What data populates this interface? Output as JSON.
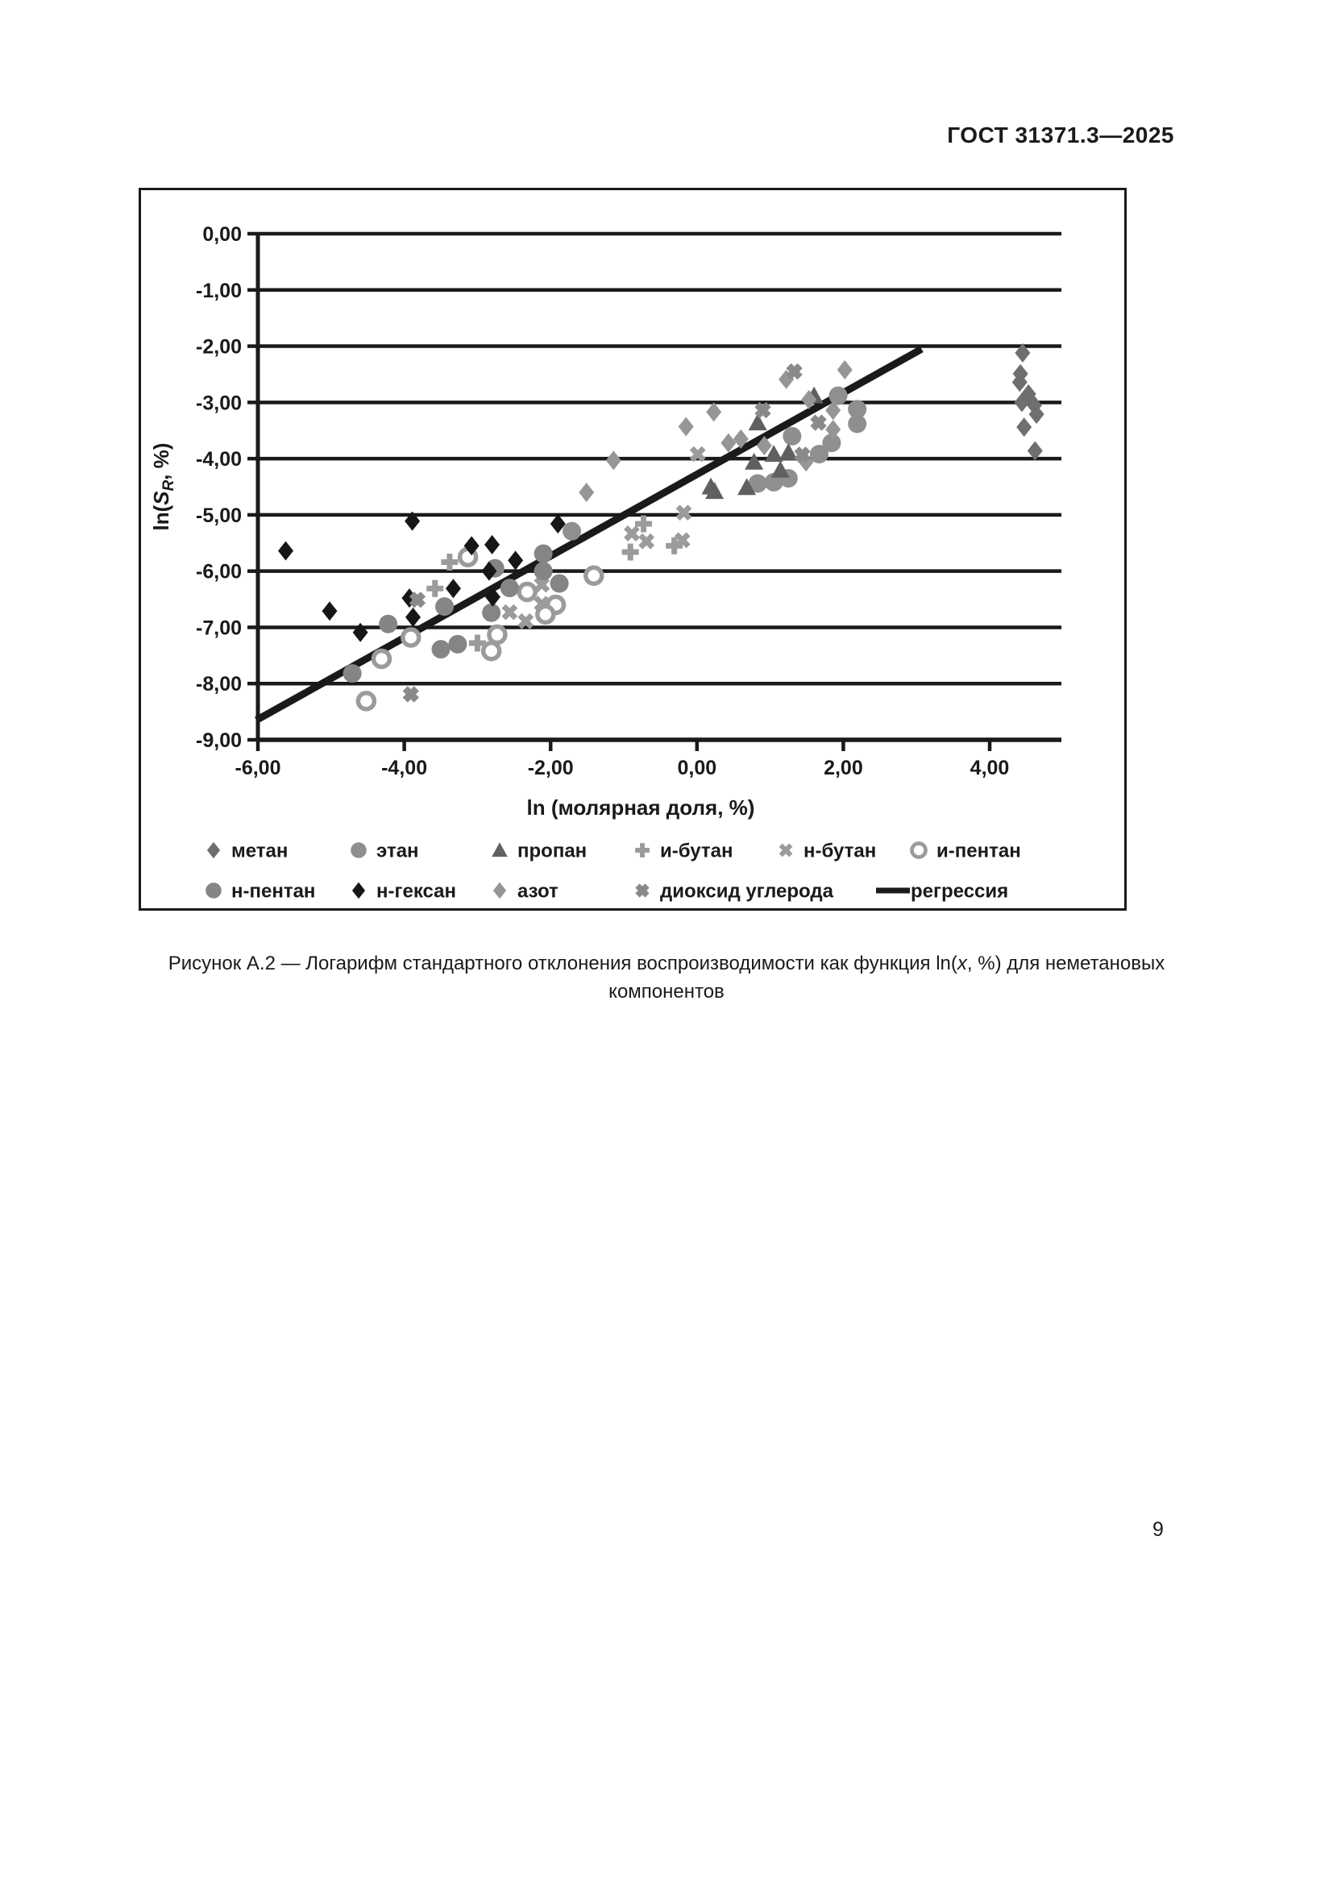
{
  "page": {
    "header": "ГОСТ 31371.3—2025",
    "page_number": "9",
    "caption": {
      "line1_pre": "Рисунок А.2 — Логарифм стандартного отклонения воспроизводимости как функция ln(",
      "line1_var": "x",
      "line1_post": ", %) для неметановых",
      "line2": "компонентов"
    }
  },
  "chart_data": {
    "type": "scatter",
    "xlabel": "ln (молярная доля, %)",
    "ylabel": {
      "pre": "ln(",
      "sym": "S",
      "sub": "R",
      "post": ", %)"
    },
    "xlim": [
      -6.0,
      4.98
    ],
    "ylim": [
      -9,
      0
    ],
    "x_ticks": [
      -6,
      -4,
      -2,
      0,
      2,
      4
    ],
    "x_tick_labels": [
      "-6,00",
      "-4,00",
      "-2,00",
      "0,00",
      "2,00",
      "4,00"
    ],
    "y_ticks": [
      0,
      -1,
      -2,
      -3,
      -4,
      -5,
      -6,
      -7,
      -8,
      -9
    ],
    "y_tick_labels": [
      "0,00",
      "-1,00",
      "-2,00",
      "-3,00",
      "-4,00",
      "-5,00",
      "-6,00",
      "-7,00",
      "-8,00",
      "-9,00"
    ],
    "grid": "horizontal",
    "axis_color": "#1a1a1a",
    "series": [
      {
        "key": "methane",
        "name": "метан",
        "marker": "diamond",
        "color": "#6f6f6f",
        "points": [
          [
            4.45,
            -2.12
          ],
          [
            4.42,
            -2.49
          ],
          [
            4.41,
            -2.64
          ],
          [
            4.53,
            -2.85
          ],
          [
            4.44,
            -3.0
          ],
          [
            4.61,
            -3.05
          ],
          [
            4.64,
            -3.21
          ],
          [
            4.47,
            -3.44
          ],
          [
            4.62,
            -3.86
          ]
        ]
      },
      {
        "key": "ethane",
        "name": "этан",
        "marker": "circle",
        "color": "#8f8f8f",
        "points": [
          [
            1.93,
            -2.88
          ],
          [
            2.19,
            -3.12
          ],
          [
            2.19,
            -3.38
          ],
          [
            1.84,
            -3.72
          ],
          [
            1.3,
            -3.6
          ],
          [
            1.67,
            -3.92
          ],
          [
            1.25,
            -4.35
          ],
          [
            1.05,
            -4.42
          ],
          [
            0.83,
            -4.44
          ],
          [
            -1.71,
            -5.29
          ]
        ]
      },
      {
        "key": "propane",
        "name": "пропан",
        "marker": "triangle",
        "color": "#606060",
        "points": [
          [
            1.6,
            -2.88
          ],
          [
            0.83,
            -3.36
          ],
          [
            1.05,
            -3.92
          ],
          [
            1.25,
            -3.89
          ],
          [
            0.78,
            -4.06
          ],
          [
            1.14,
            -4.2
          ],
          [
            0.19,
            -4.5
          ],
          [
            0.68,
            -4.51
          ],
          [
            0.24,
            -4.58
          ]
        ]
      },
      {
        "key": "isobutane",
        "name": "и-бутан",
        "marker": "plus",
        "color": "#9b9b9b",
        "points": [
          [
            -0.73,
            -5.16
          ],
          [
            -0.31,
            -5.55
          ],
          [
            -0.91,
            -5.66
          ],
          [
            -3.38,
            -5.84
          ],
          [
            -3.58,
            -6.31
          ],
          [
            -3.0,
            -7.28
          ]
        ]
      },
      {
        "key": "n-butane",
        "name": "н-бутан",
        "marker": "x",
        "color": "#9b9b9b",
        "points": [
          [
            0.01,
            -3.92
          ],
          [
            -0.18,
            -4.96
          ],
          [
            -0.89,
            -5.33
          ],
          [
            -0.69,
            -5.47
          ],
          [
            -0.2,
            -5.45
          ],
          [
            -2.12,
            -6.24
          ],
          [
            -2.12,
            -6.58
          ],
          [
            -2.56,
            -6.73
          ],
          [
            -2.34,
            -6.89
          ]
        ]
      },
      {
        "key": "isopentane",
        "name": "и-пентан",
        "marker": "ring",
        "color": "#9b9b9b",
        "points": [
          [
            -3.13,
            -5.75
          ],
          [
            -1.41,
            -6.08
          ],
          [
            -2.32,
            -6.37
          ],
          [
            -1.93,
            -6.6
          ],
          [
            -2.07,
            -6.77
          ],
          [
            -2.73,
            -7.13
          ],
          [
            -3.91,
            -7.18
          ],
          [
            -2.81,
            -7.42
          ],
          [
            -4.31,
            -7.56
          ],
          [
            -4.52,
            -8.31
          ]
        ]
      },
      {
        "key": "n-pentane",
        "name": "н-пентан",
        "marker": "circle",
        "color": "#858585",
        "points": [
          [
            -2.76,
            -5.95
          ],
          [
            -2.1,
            -5.69
          ],
          [
            -2.1,
            -6.0
          ],
          [
            -1.88,
            -6.22
          ],
          [
            -2.56,
            -6.3
          ],
          [
            -2.81,
            -6.74
          ],
          [
            -3.45,
            -6.63
          ],
          [
            -4.22,
            -6.94
          ],
          [
            -3.27,
            -7.3
          ],
          [
            -3.5,
            -7.39
          ],
          [
            -4.71,
            -7.82
          ]
        ]
      },
      {
        "key": "n-hexane",
        "name": "н-гексан",
        "marker": "diamond",
        "color": "#161616",
        "points": [
          [
            -5.62,
            -5.64
          ],
          [
            -3.89,
            -5.11
          ],
          [
            -3.08,
            -5.55
          ],
          [
            -2.8,
            -5.53
          ],
          [
            -2.48,
            -5.81
          ],
          [
            -2.84,
            -6.0
          ],
          [
            -1.9,
            -5.16
          ],
          [
            -2.79,
            -6.46
          ],
          [
            -3.33,
            -6.31
          ],
          [
            -3.93,
            -6.48
          ],
          [
            -3.88,
            -6.82
          ],
          [
            -5.02,
            -6.71
          ],
          [
            -4.6,
            -7.09
          ]
        ]
      },
      {
        "key": "nitrogen",
        "name": "азот",
        "marker": "diamond",
        "color": "#969696",
        "points": [
          [
            2.02,
            -2.42
          ],
          [
            1.22,
            -2.59
          ],
          [
            1.53,
            -2.95
          ],
          [
            1.86,
            -3.14
          ],
          [
            1.86,
            -3.48
          ],
          [
            0.23,
            -3.17
          ],
          [
            -0.15,
            -3.43
          ],
          [
            0.6,
            -3.65
          ],
          [
            0.43,
            -3.72
          ],
          [
            0.92,
            -3.77
          ],
          [
            1.49,
            -4.06
          ],
          [
            -1.14,
            -4.03
          ],
          [
            -1.51,
            -4.6
          ]
        ]
      },
      {
        "key": "carbon-dioxide",
        "name": "диоксид углерода",
        "marker": "xbold",
        "color": "#8a8a8a",
        "points": [
          [
            1.33,
            -2.45
          ],
          [
            0.9,
            -3.14
          ],
          [
            1.66,
            -3.36
          ],
          [
            1.44,
            -3.93
          ],
          [
            -3.82,
            -6.51
          ],
          [
            -3.91,
            -8.19
          ]
        ]
      }
    ],
    "regression": {
      "key": "regression",
      "name": "регрессия",
      "color": "#1a1a1a",
      "points": [
        [
          -6.02,
          -8.65
        ],
        [
          3.07,
          -2.05
        ]
      ]
    },
    "legend": {
      "rows": [
        [
          "метан",
          "этан",
          "пропан",
          "и-бутан",
          "н-бутан",
          "и-пентан"
        ],
        [
          "н-пентан",
          "н-гексан",
          "азот",
          "диоксид углерода",
          "регрессия"
        ]
      ],
      "position": "bottom-inside"
    }
  }
}
